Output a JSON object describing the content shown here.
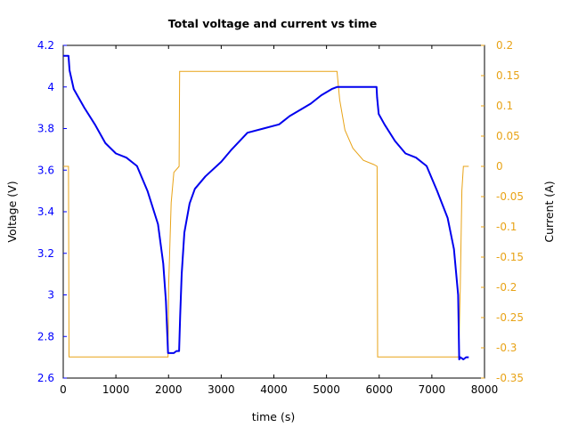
{
  "chart_data": {
    "type": "line",
    "title": "Total voltage and current vs time",
    "xlabel": "time (s)",
    "ylabel": "Voltage (V)",
    "y2label": "Current (A)",
    "xlim": [
      0,
      8000
    ],
    "ylim": [
      2.6,
      4.2
    ],
    "y2lim": [
      -0.35,
      0.2
    ],
    "xticks": [
      "0",
      "1000",
      "2000",
      "3000",
      "4000",
      "5000",
      "6000",
      "7000",
      "8000"
    ],
    "yticks": [
      "2.6",
      "2.8",
      "3",
      "3.2",
      "3.4",
      "3.6",
      "3.8",
      "4",
      "4.2"
    ],
    "y2ticks": [
      "-0.35",
      "-0.3",
      "-0.25",
      "-0.2",
      "-0.15",
      "-0.1",
      "-0.05",
      "0",
      "0.05",
      "0.1",
      "0.15",
      "0.2"
    ],
    "grid": false,
    "colors": {
      "voltage": "#0000ee",
      "current": "#e8a317",
      "voltage_ticks": "#0000ff",
      "current_ticks": "#e8a317"
    },
    "series": [
      {
        "axis": "left",
        "x": [
          0,
          100,
          120,
          200,
          400,
          600,
          800,
          1000,
          1200,
          1400,
          1600,
          1800,
          1900,
          1950,
          1990,
          2050,
          2100,
          2150,
          2200,
          2220,
          2250,
          2300,
          2400,
          2500,
          2700,
          3000,
          3200,
          3500,
          3800,
          4100,
          4200,
          4300,
          4500,
          4700,
          4900,
          5100,
          5200,
          5300,
          5600,
          5950,
          5960,
          5990,
          6100,
          6300,
          6500,
          6700,
          6900,
          7100,
          7300,
          7420,
          7500,
          7520,
          7540,
          7600,
          7650,
          7700
        ],
        "values": [
          4.15,
          4.15,
          4.08,
          3.99,
          3.9,
          3.82,
          3.73,
          3.68,
          3.66,
          3.62,
          3.5,
          3.34,
          3.15,
          2.97,
          2.72,
          2.72,
          2.72,
          2.73,
          2.73,
          2.9,
          3.1,
          3.3,
          3.44,
          3.51,
          3.57,
          3.64,
          3.7,
          3.78,
          3.8,
          3.82,
          3.84,
          3.86,
          3.89,
          3.92,
          3.96,
          3.99,
          4.0,
          4.0,
          4.0,
          4.0,
          3.95,
          3.87,
          3.82,
          3.74,
          3.68,
          3.66,
          3.62,
          3.5,
          3.37,
          3.22,
          3.0,
          2.69,
          2.7,
          2.69,
          2.7,
          2.7
        ]
      },
      {
        "axis": "right",
        "x": [
          0,
          100,
          110,
          1990,
          2000,
          2050,
          2100,
          2200,
          2210,
          5200,
          5250,
          5350,
          5500,
          5700,
          5900,
          5960,
          5970,
          7510,
          7540,
          7570,
          7600,
          7700
        ],
        "values": [
          0,
          0,
          -0.315,
          -0.315,
          -0.2,
          -0.06,
          -0.01,
          0,
          0.157,
          0.157,
          0.11,
          0.06,
          0.03,
          0.01,
          0.003,
          0,
          -0.315,
          -0.315,
          -0.2,
          -0.04,
          0,
          0
        ]
      }
    ]
  }
}
